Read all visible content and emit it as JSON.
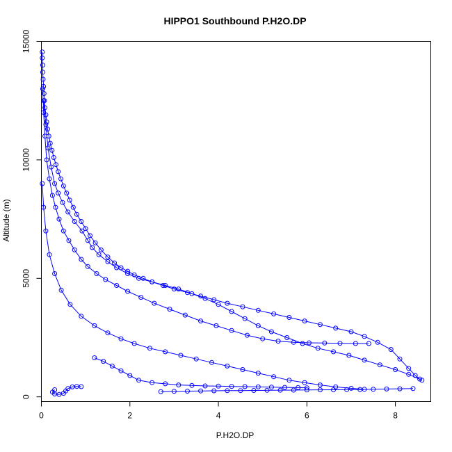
{
  "chart_data": {
    "type": "scatter",
    "title": "HIPPO1 Southbound P.H2O.DP",
    "xlabel": "P.H2O.DP",
    "ylabel": "Altitude (m)",
    "xlim": [
      0,
      8.8
    ],
    "ylim": [
      -200,
      15000
    ],
    "xticks": [
      0,
      2,
      4,
      6,
      8
    ],
    "yticks": [
      0,
      5000,
      10000,
      15000
    ],
    "grid": false,
    "legend": "none",
    "color": "#0000ff",
    "marker": "open-circle",
    "connected": true,
    "series": [
      {
        "values": [
          [
            0.02,
            14550
          ],
          [
            0.02,
            14300
          ],
          [
            0.03,
            14000
          ],
          [
            0.03,
            13700
          ],
          [
            0.04,
            13400
          ],
          [
            0.05,
            13100
          ],
          [
            0.06,
            12800
          ],
          [
            0.07,
            12500
          ],
          [
            0.08,
            12200
          ],
          [
            0.1,
            11900
          ],
          [
            0.12,
            11600
          ],
          [
            0.14,
            11300
          ],
          [
            0.17,
            11000
          ],
          [
            0.2,
            10700
          ],
          [
            0.24,
            10400
          ],
          [
            0.28,
            10100
          ],
          [
            0.33,
            9800
          ],
          [
            0.38,
            9500
          ],
          [
            0.44,
            9200
          ],
          [
            0.5,
            8900
          ],
          [
            0.57,
            8600
          ],
          [
            0.64,
            8300
          ],
          [
            0.72,
            8000
          ],
          [
            0.8,
            7700
          ],
          [
            0.9,
            7400
          ],
          [
            1.0,
            7100
          ],
          [
            1.1,
            6800
          ],
          [
            1.22,
            6500
          ],
          [
            1.35,
            6200
          ],
          [
            1.5,
            5900
          ],
          [
            1.65,
            5650
          ],
          [
            1.8,
            5450
          ],
          [
            1.95,
            5300
          ],
          [
            2.1,
            5150
          ],
          [
            2.3,
            5000
          ],
          [
            2.5,
            4850
          ],
          [
            2.75,
            4700
          ],
          [
            3.0,
            4550
          ],
          [
            3.3,
            4400
          ],
          [
            3.6,
            4250
          ],
          [
            3.9,
            4100
          ],
          [
            4.2,
            3950
          ],
          [
            4.55,
            3800
          ],
          [
            4.9,
            3650
          ],
          [
            5.25,
            3500
          ],
          [
            5.6,
            3350
          ],
          [
            5.95,
            3200
          ],
          [
            6.3,
            3050
          ],
          [
            6.65,
            2900
          ],
          [
            7.0,
            2750
          ],
          [
            7.3,
            2550
          ],
          [
            7.6,
            2300
          ],
          [
            7.9,
            2000
          ],
          [
            8.1,
            1600
          ],
          [
            8.3,
            1200
          ],
          [
            8.45,
            900
          ],
          [
            8.55,
            750
          ]
        ]
      },
      {
        "values": [
          [
            0.03,
            13000
          ],
          [
            0.05,
            12000
          ],
          [
            0.08,
            11000
          ],
          [
            0.12,
            10000
          ],
          [
            0.18,
            9200
          ],
          [
            0.25,
            8500
          ],
          [
            0.32,
            8000
          ],
          [
            0.4,
            7500
          ],
          [
            0.5,
            7000
          ],
          [
            0.62,
            6600
          ],
          [
            0.75,
            6200
          ],
          [
            0.9,
            5800
          ],
          [
            1.05,
            5500
          ],
          [
            1.25,
            5200
          ],
          [
            1.45,
            4950
          ],
          [
            1.7,
            4700
          ],
          [
            1.95,
            4450
          ],
          [
            2.25,
            4200
          ],
          [
            2.55,
            3950
          ],
          [
            2.9,
            3700
          ],
          [
            3.25,
            3450
          ],
          [
            3.6,
            3200
          ],
          [
            3.95,
            3000
          ],
          [
            4.3,
            2800
          ],
          [
            4.65,
            2600
          ],
          [
            5.0,
            2450
          ],
          [
            5.35,
            2350
          ],
          [
            5.7,
            2300
          ],
          [
            6.05,
            2280
          ],
          [
            6.4,
            2270
          ],
          [
            6.75,
            2260
          ],
          [
            7.1,
            2250
          ],
          [
            7.4,
            2250
          ]
        ]
      },
      {
        "values": [
          [
            0.05,
            12500
          ],
          [
            0.1,
            11500
          ],
          [
            0.15,
            10500
          ],
          [
            0.22,
            9700
          ],
          [
            0.3,
            9000
          ],
          [
            0.38,
            8600
          ],
          [
            0.48,
            8200
          ],
          [
            0.6,
            7800
          ],
          [
            0.75,
            7400
          ],
          [
            0.92,
            7000
          ],
          [
            1.05,
            6600
          ],
          [
            1.15,
            6300
          ],
          [
            1.3,
            6000
          ],
          [
            1.5,
            5700
          ],
          [
            1.7,
            5450
          ],
          [
            1.95,
            5200
          ],
          [
            2.2,
            5000
          ],
          [
            2.5,
            4850
          ],
          [
            2.8,
            4700
          ],
          [
            3.1,
            4550
          ],
          [
            3.4,
            4350
          ],
          [
            3.7,
            4150
          ],
          [
            4.0,
            3900
          ],
          [
            4.3,
            3600
          ],
          [
            4.6,
            3300
          ],
          [
            4.9,
            3000
          ],
          [
            5.2,
            2750
          ],
          [
            5.55,
            2500
          ],
          [
            5.9,
            2250
          ],
          [
            6.25,
            2050
          ],
          [
            6.6,
            1900
          ],
          [
            6.95,
            1750
          ],
          [
            7.3,
            1550
          ],
          [
            7.65,
            1350
          ],
          [
            8.0,
            1150
          ],
          [
            8.3,
            950
          ],
          [
            8.6,
            700
          ]
        ]
      },
      {
        "values": [
          [
            0.02,
            9000
          ],
          [
            0.05,
            8000
          ],
          [
            0.1,
            7000
          ],
          [
            0.18,
            6000
          ],
          [
            0.3,
            5200
          ],
          [
            0.45,
            4500
          ],
          [
            0.65,
            3900
          ],
          [
            0.9,
            3400
          ],
          [
            1.2,
            3000
          ],
          [
            1.5,
            2700
          ],
          [
            1.8,
            2450
          ],
          [
            2.1,
            2250
          ],
          [
            2.45,
            2050
          ],
          [
            2.8,
            1900
          ],
          [
            3.15,
            1750
          ],
          [
            3.5,
            1600
          ],
          [
            3.85,
            1450
          ],
          [
            4.2,
            1300
          ],
          [
            4.55,
            1150
          ],
          [
            4.9,
            1000
          ],
          [
            5.25,
            850
          ],
          [
            5.6,
            700
          ],
          [
            5.95,
            600
          ],
          [
            6.3,
            500
          ],
          [
            6.65,
            420
          ],
          [
            7.0,
            360
          ],
          [
            7.3,
            320
          ]
        ]
      },
      {
        "values": [
          [
            1.2,
            1650
          ],
          [
            1.4,
            1500
          ],
          [
            1.6,
            1300
          ],
          [
            1.8,
            1100
          ],
          [
            2.0,
            900
          ],
          [
            2.2,
            700
          ],
          [
            2.5,
            600
          ],
          [
            2.8,
            550
          ],
          [
            3.1,
            500
          ],
          [
            3.4,
            480
          ],
          [
            3.7,
            460
          ],
          [
            4.0,
            450
          ],
          [
            4.3,
            440
          ],
          [
            4.6,
            430
          ],
          [
            4.9,
            420
          ],
          [
            5.2,
            410
          ],
          [
            5.5,
            400
          ],
          [
            5.8,
            390
          ],
          [
            6.0,
            380
          ]
        ]
      },
      {
        "values": [
          [
            2.7,
            220
          ],
          [
            3.0,
            230
          ],
          [
            3.3,
            240
          ],
          [
            3.6,
            250
          ],
          [
            3.9,
            255
          ],
          [
            4.2,
            260
          ],
          [
            4.5,
            265
          ],
          [
            4.8,
            270
          ],
          [
            5.1,
            275
          ],
          [
            5.4,
            280
          ],
          [
            5.7,
            285
          ],
          [
            6.0,
            290
          ],
          [
            6.3,
            295
          ],
          [
            6.6,
            300
          ],
          [
            6.9,
            305
          ],
          [
            7.2,
            310
          ],
          [
            7.5,
            320
          ],
          [
            7.8,
            330
          ],
          [
            8.1,
            340
          ],
          [
            8.4,
            350
          ]
        ]
      },
      {
        "values": [
          [
            0.3,
            300
          ],
          [
            0.25,
            200
          ],
          [
            0.3,
            120
          ],
          [
            0.4,
            100
          ],
          [
            0.5,
            150
          ],
          [
            0.55,
            250
          ],
          [
            0.6,
            350
          ],
          [
            0.7,
            420
          ],
          [
            0.8,
            440
          ],
          [
            0.9,
            430
          ]
        ]
      }
    ]
  }
}
